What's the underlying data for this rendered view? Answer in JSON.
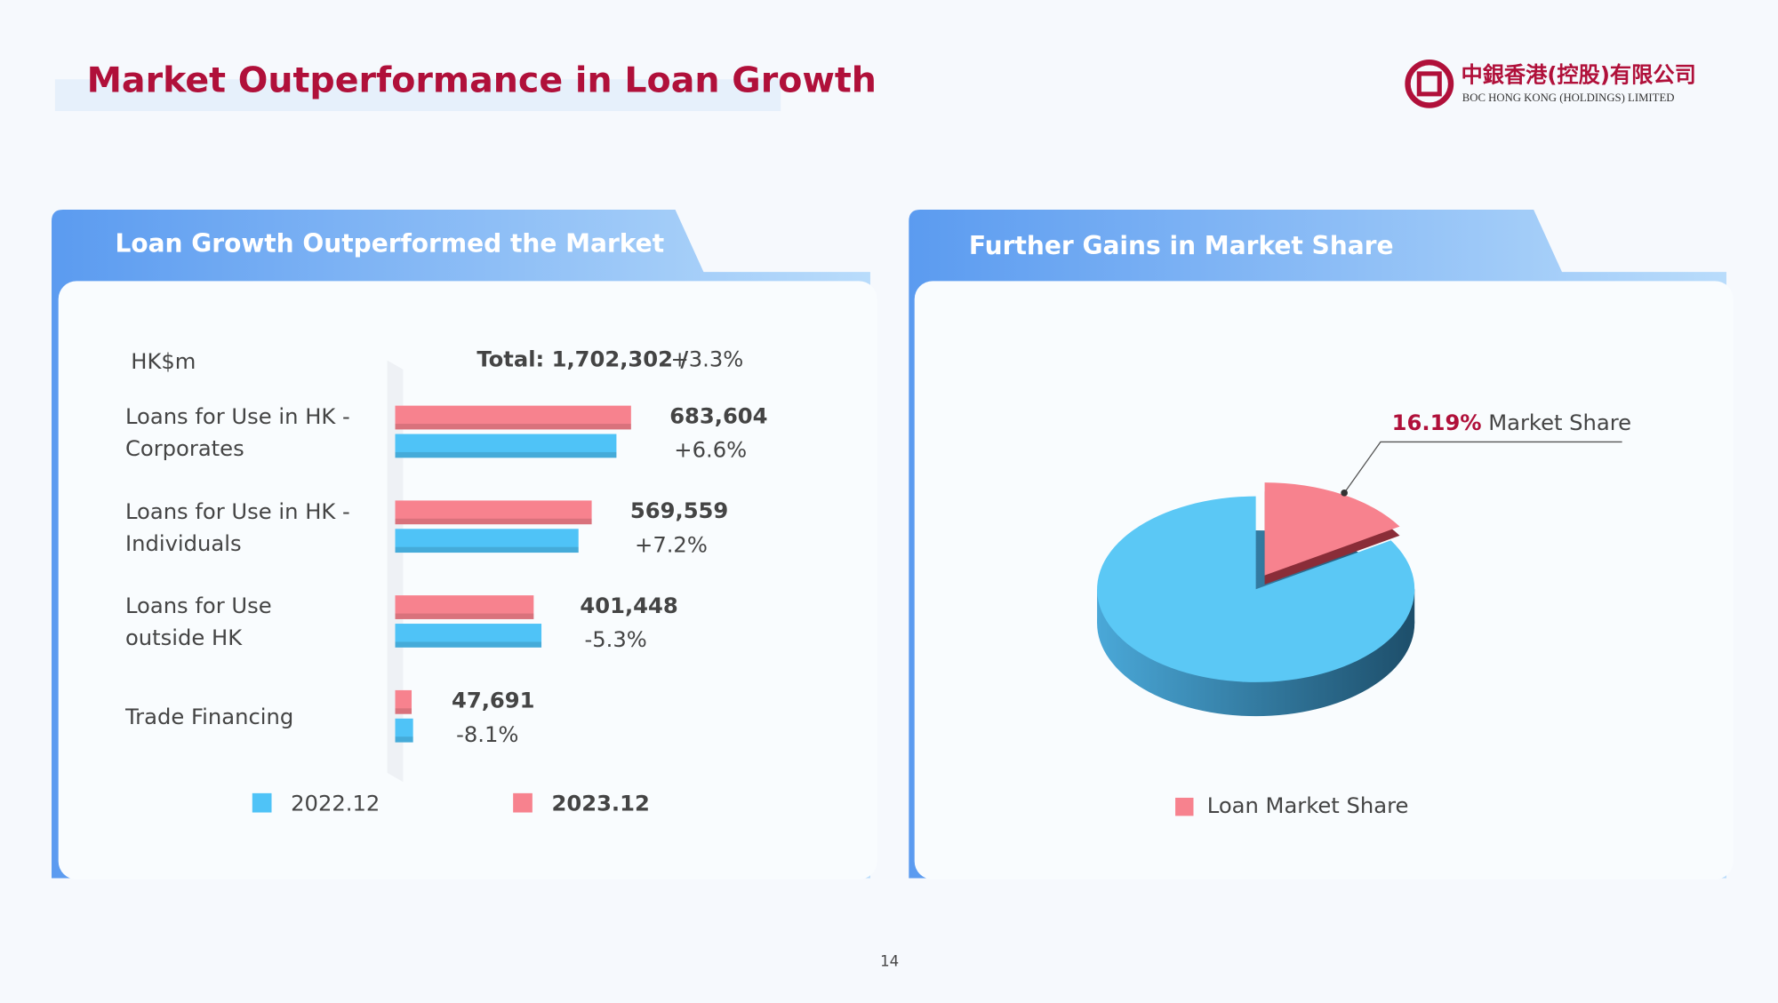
{
  "header": {
    "title": "Market Outperformance in Loan Growth",
    "logo_cn": "中銀香港(控股)有限公司",
    "logo_en": "BOC HONG KONG (HOLDINGS) LIMITED",
    "page_number": "14"
  },
  "chart_data": [
    {
      "type": "bar",
      "orientation": "horizontal",
      "title": "Loan Growth Outperformed the Market",
      "unit_label": "HK$m",
      "total_label": "Total: 1,702,302 /",
      "total_change": "+3.3%",
      "categories": [
        "Loans for Use in HK -\nCorporates",
        "Loans for Use in HK -\nIndividuals",
        "Loans for Use\noutside HK",
        "Trade Financing"
      ],
      "xlim": [
        0,
        700000
      ],
      "series": [
        {
          "name": "2022.12",
          "color": "#4fc3f7",
          "values": [
            641280,
            531305,
            423916,
            51894
          ]
        },
        {
          "name": "2023.12",
          "color": "#f7828e",
          "values": [
            683604,
            569559,
            401448,
            47691
          ],
          "value_labels": [
            "683,604",
            "569,559",
            "401,448",
            "47,691"
          ]
        }
      ],
      "change_labels": [
        "+6.6%",
        "+7.2%",
        "-5.3%",
        "-8.1%"
      ]
    },
    {
      "type": "pie",
      "title": "Further Gains in Market Share",
      "categories": [
        "Loan Market Share",
        null
      ],
      "values": [
        16.19,
        83.81
      ],
      "value_labels": [
        "16.19%",
        null
      ],
      "colors": [
        "#f7828e",
        "#5bc8f5"
      ],
      "annotation": "Market Share"
    }
  ]
}
